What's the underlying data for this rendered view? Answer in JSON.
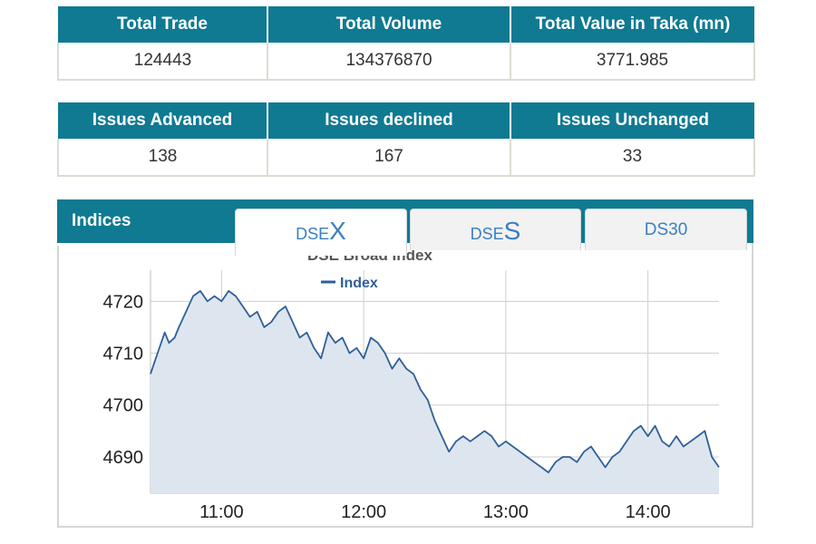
{
  "summary": {
    "headers": [
      "Total Trade",
      "Total Volume",
      "Total Value in Taka (mn)"
    ],
    "values": [
      "124443",
      "134376870",
      "3771.985"
    ]
  },
  "issues": {
    "headers": [
      "Issues Advanced",
      "Issues declined",
      "Issues Unchanged"
    ],
    "values": [
      "138",
      "167",
      "33"
    ]
  },
  "indices": {
    "title": "Indices",
    "tabs": [
      {
        "prefix": "DSE",
        "suffix": "X",
        "active": true
      },
      {
        "prefix": "DSE",
        "suffix": "S",
        "active": false
      },
      {
        "label": "DS30",
        "active": false
      }
    ]
  },
  "colors": {
    "header_bg": "#0f7a92",
    "line": "#2f5f98",
    "area": "#dde6ef"
  },
  "chart_data": {
    "type": "area",
    "title": "DSE Broad Index",
    "legend": [
      "Index"
    ],
    "legend_position": "top-center",
    "xlabel": "",
    "ylabel": "",
    "x_ticks": [
      "11:00",
      "12:00",
      "13:00",
      "14:00"
    ],
    "x_tick_values": [
      11.0,
      12.0,
      13.0,
      14.0
    ],
    "y_ticks": [
      4690,
      4700,
      4710,
      4720
    ],
    "xlim": [
      10.5,
      14.5
    ],
    "ylim": [
      4683,
      4726
    ],
    "grid": true,
    "series": [
      {
        "name": "Index",
        "x": [
          10.5,
          10.55,
          10.6,
          10.63,
          10.67,
          10.7,
          10.75,
          10.8,
          10.85,
          10.9,
          10.95,
          11.0,
          11.05,
          11.1,
          11.15,
          11.2,
          11.25,
          11.3,
          11.35,
          11.4,
          11.45,
          11.5,
          11.55,
          11.6,
          11.65,
          11.7,
          11.75,
          11.8,
          11.85,
          11.9,
          11.95,
          12.0,
          12.05,
          12.1,
          12.15,
          12.2,
          12.25,
          12.3,
          12.35,
          12.4,
          12.45,
          12.5,
          12.55,
          12.6,
          12.65,
          12.7,
          12.75,
          12.8,
          12.85,
          12.9,
          12.95,
          13.0,
          13.05,
          13.1,
          13.15,
          13.2,
          13.25,
          13.3,
          13.35,
          13.4,
          13.45,
          13.5,
          13.55,
          13.6,
          13.65,
          13.7,
          13.75,
          13.8,
          13.85,
          13.9,
          13.95,
          14.0,
          14.05,
          14.1,
          14.15,
          14.2,
          14.25,
          14.3,
          14.35,
          14.4,
          14.45,
          14.5
        ],
        "values": [
          4706,
          4710,
          4714,
          4712,
          4713,
          4715,
          4718,
          4721,
          4722,
          4720,
          4721,
          4720,
          4722,
          4721,
          4719,
          4717,
          4718,
          4715,
          4716,
          4718,
          4719,
          4716,
          4713,
          4714,
          4711,
          4709,
          4714,
          4712,
          4713,
          4710,
          4711,
          4709,
          4713,
          4712,
          4710,
          4707,
          4709,
          4707,
          4706,
          4703,
          4701,
          4697,
          4694,
          4691,
          4693,
          4694,
          4693,
          4694,
          4695,
          4694,
          4692,
          4693,
          4692,
          4691,
          4690,
          4689,
          4688,
          4687,
          4689,
          4690,
          4690,
          4689,
          4691,
          4692,
          4690,
          4688,
          4690,
          4691,
          4693,
          4695,
          4696,
          4694,
          4696,
          4693,
          4692,
          4694,
          4692,
          4693,
          4694,
          4695,
          4690,
          4688
        ]
      }
    ]
  }
}
